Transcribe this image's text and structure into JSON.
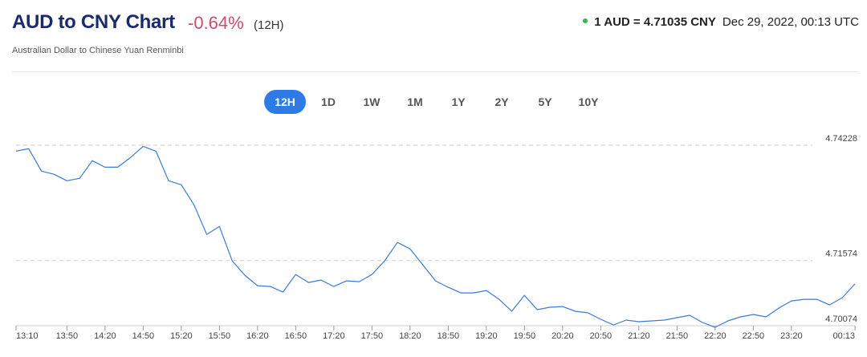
{
  "header": {
    "title": "AUD to CNY Chart",
    "change": "-0.64%",
    "period": "(12H)",
    "subtitle": "Australian Dollar to Chinese Yuan Renminbi"
  },
  "rate": {
    "quote": "1 AUD = 4.71035 CNY",
    "time": "Dec 29, 2022, 00:13 UTC"
  },
  "ranges": [
    "12H",
    "1D",
    "1W",
    "1M",
    "1Y",
    "2Y",
    "5Y",
    "10Y"
  ],
  "chart_data": {
    "type": "line",
    "categories": [
      "13:10",
      null,
      null,
      null,
      "13:50",
      null,
      null,
      "14:20",
      null,
      null,
      "14:50",
      null,
      null,
      "15:20",
      null,
      null,
      "15:50",
      null,
      null,
      "16:20",
      null,
      null,
      "16:50",
      null,
      null,
      "17:20",
      null,
      null,
      "17:50",
      null,
      null,
      "18:20",
      null,
      null,
      "18:50",
      null,
      null,
      "19:20",
      null,
      null,
      "19:50",
      null,
      null,
      "20:20",
      null,
      null,
      "20:50",
      null,
      null,
      "21:20",
      null,
      null,
      "21:50",
      null,
      null,
      "22:20",
      null,
      null,
      "22:50",
      null,
      null,
      "23:20",
      null,
      null,
      null,
      null,
      "00:13"
    ],
    "series": [
      {
        "name": "AUD/CNY",
        "color": "#3a7bd5",
        "values": [
          4.74092,
          4.74147,
          4.73631,
          4.73557,
          4.7341,
          4.73465,
          4.73871,
          4.73723,
          4.73723,
          4.73944,
          4.74202,
          4.74092,
          4.7341,
          4.73318,
          4.72857,
          4.72175,
          4.72359,
          4.71567,
          4.71235,
          4.70996,
          4.70977,
          4.70848,
          4.71254,
          4.71069,
          4.71125,
          4.70977,
          4.71106,
          4.71088,
          4.71254,
          4.71567,
          4.71991,
          4.71843,
          4.71475,
          4.71106,
          4.70959,
          4.7083,
          4.7083,
          4.70885,
          4.70682,
          4.70406,
          4.70774,
          4.70443,
          4.70498,
          4.70516,
          4.70406,
          4.70369,
          4.70221,
          4.70092,
          4.70203,
          4.70166,
          4.70185,
          4.70203,
          4.70258,
          4.70314,
          4.70148,
          4.70037,
          4.70185,
          4.70277,
          4.70332,
          4.70277,
          4.70479,
          4.70645,
          4.70682,
          4.70682,
          4.70553,
          4.70719,
          4.71035
        ]
      }
    ],
    "ylim": [
      4.70074,
      4.74228
    ],
    "yticks": [
      4.70074,
      4.71574,
      4.74228
    ],
    "grid": true
  }
}
